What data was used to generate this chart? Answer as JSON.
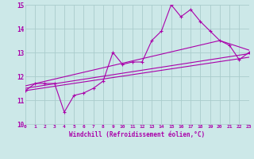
{
  "xlabel": "Windchill (Refroidissement éolien,°C)",
  "ylabel": "",
  "xlim": [
    0,
    23
  ],
  "ylim": [
    10,
    15
  ],
  "yticks": [
    10,
    11,
    12,
    13,
    14,
    15
  ],
  "xticks": [
    0,
    1,
    2,
    3,
    4,
    5,
    6,
    7,
    8,
    9,
    10,
    11,
    12,
    13,
    14,
    15,
    16,
    17,
    18,
    19,
    20,
    21,
    22,
    23
  ],
  "bg_color": "#cce8e8",
  "grid_color": "#aacccc",
  "line_color": "#aa00aa",
  "series": {
    "jagged": [
      [
        0,
        11.4
      ],
      [
        1,
        11.7
      ],
      [
        2,
        11.7
      ],
      [
        3,
        11.7
      ],
      [
        4,
        10.5
      ],
      [
        5,
        11.2
      ],
      [
        6,
        11.3
      ],
      [
        7,
        11.5
      ],
      [
        8,
        11.8
      ],
      [
        9,
        13.0
      ],
      [
        10,
        12.5
      ],
      [
        11,
        12.6
      ],
      [
        12,
        12.6
      ],
      [
        13,
        13.5
      ],
      [
        14,
        13.9
      ],
      [
        15,
        15.0
      ],
      [
        16,
        14.5
      ],
      [
        17,
        14.8
      ],
      [
        18,
        14.3
      ],
      [
        19,
        13.9
      ],
      [
        20,
        13.5
      ],
      [
        21,
        13.3
      ],
      [
        22,
        12.7
      ],
      [
        23,
        13.0
      ]
    ],
    "lower_line": [
      [
        0,
        11.4
      ],
      [
        23,
        12.8
      ]
    ],
    "upper_line": [
      [
        0,
        11.6
      ],
      [
        20,
        13.5
      ],
      [
        23,
        13.1
      ]
    ],
    "mid_line": [
      [
        0,
        11.5
      ],
      [
        23,
        12.95
      ]
    ]
  }
}
